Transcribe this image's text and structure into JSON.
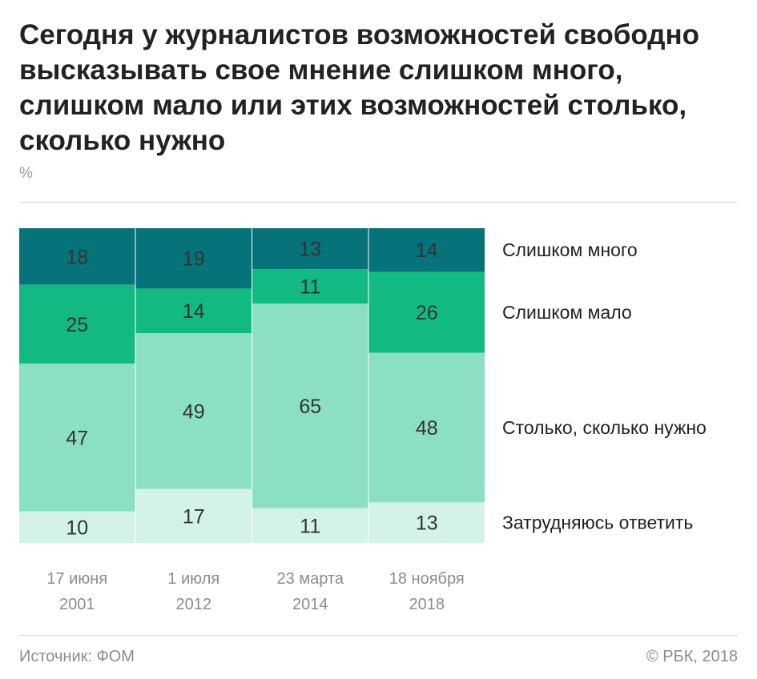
{
  "title": "Сегодня у журналистов возможностей свободно высказывать свое мнение слишком много, слишком мало или этих возможностей столько, сколько нужно",
  "unit": "%",
  "source": "Источник: ФОМ",
  "copyright": "© РБК, 2018",
  "colors": {
    "too_much": "#06727A",
    "too_little": "#13B982",
    "enough": "#8BDFC3",
    "hard_to_say": "#D3F2E8"
  },
  "chart_data": {
    "type": "bar",
    "stacked": true,
    "title": "Сегодня у журналистов возможностей свободно высказывать свое мнение слишком много, слишком мало или этих возможностей столько, сколько нужно",
    "ylabel": "%",
    "categories": [
      [
        "17 июня",
        "2001"
      ],
      [
        "1 июля",
        "2012"
      ],
      [
        "23 марта",
        "2014"
      ],
      [
        "18 ноября",
        "2018"
      ]
    ],
    "series": [
      {
        "name": "Слишком много",
        "values": [
          18,
          19,
          13,
          14
        ]
      },
      {
        "name": "Слишком мало",
        "values": [
          25,
          14,
          11,
          26
        ]
      },
      {
        "name": "Столько, сколько нужно",
        "values": [
          47,
          49,
          65,
          48
        ]
      },
      {
        "name": "Затрудняюсь ответить",
        "values": [
          10,
          17,
          11,
          13
        ]
      }
    ],
    "legend_position": "right"
  }
}
